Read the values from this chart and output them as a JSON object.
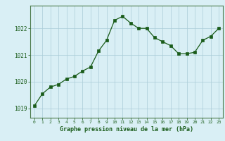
{
  "x": [
    0,
    1,
    2,
    3,
    4,
    5,
    6,
    7,
    8,
    9,
    10,
    11,
    12,
    13,
    14,
    15,
    16,
    17,
    18,
    19,
    20,
    21,
    22,
    23
  ],
  "y": [
    1019.1,
    1019.55,
    1019.8,
    1019.9,
    1020.1,
    1020.2,
    1020.4,
    1020.55,
    1021.15,
    1021.55,
    1022.3,
    1022.45,
    1022.2,
    1022.0,
    1022.0,
    1021.65,
    1021.5,
    1021.35,
    1021.05,
    1021.05,
    1021.1,
    1021.55,
    1021.7,
    1022.0
  ],
  "line_color": "#1a5c1a",
  "marker": "s",
  "marker_size": 2.5,
  "bg_color": "#d9eff5",
  "grid_color": "#aaccd8",
  "xlabel": "Graphe pression niveau de la mer (hPa)",
  "xlabel_color": "#1a5c1a",
  "tick_color": "#1a5c1a",
  "axis_color": "#4a7a4a",
  "yticks": [
    1019,
    1020,
    1021,
    1022
  ],
  "xticks": [
    0,
    1,
    2,
    3,
    4,
    5,
    6,
    7,
    8,
    9,
    10,
    11,
    12,
    13,
    14,
    15,
    16,
    17,
    18,
    19,
    20,
    21,
    22,
    23
  ],
  "ylim": [
    1018.65,
    1022.85
  ],
  "xlim": [
    -0.5,
    23.5
  ]
}
